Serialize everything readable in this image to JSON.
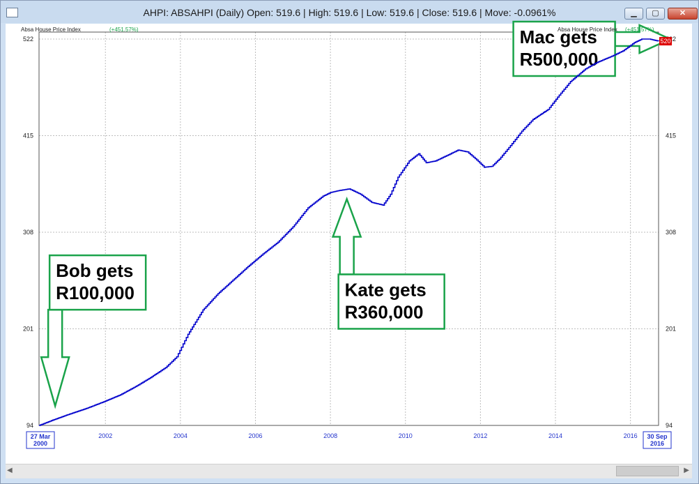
{
  "window": {
    "title": "AHPI: ABSAHPI (Daily) Open: 519.6 | High: 519.6 | Low: 519.6 | Close: 519.6 | Move: -0.0961%",
    "minimize_glyph": "▁",
    "maximize_glyph": "▢",
    "close_glyph": "✕"
  },
  "chart_data": {
    "type": "line",
    "series_label_left": "Absa House Price Index",
    "series_label_right": "Absa House Price Index",
    "change_label": "(+451.57%)",
    "line_color": "#0000cc",
    "annotation_color": "#1aa34a",
    "last_value_color": "#dd0000",
    "last_value_label": "520",
    "start_date_label": [
      "27 Mar",
      "2000"
    ],
    "end_date_label": [
      "30 Sep",
      "2016"
    ],
    "xticks": [
      "2002",
      "2004",
      "2006",
      "2008",
      "2010",
      "2012",
      "2014",
      "2016"
    ],
    "yticks": [
      "522",
      "415",
      "308",
      "201",
      "94"
    ],
    "ylim": [
      94,
      522
    ],
    "xlim": [
      2000.23,
      2016.75
    ],
    "grid": true,
    "x": [
      2000.23,
      2000.6,
      2001.0,
      2001.5,
      2002.0,
      2002.4,
      2002.8,
      2003.2,
      2003.6,
      2003.9,
      2004.2,
      2004.6,
      2005.0,
      2005.4,
      2005.8,
      2006.2,
      2006.6,
      2007.0,
      2007.4,
      2007.8,
      2008.0,
      2008.2,
      2008.5,
      2008.8,
      2009.1,
      2009.4,
      2009.6,
      2009.8,
      2010.1,
      2010.35,
      2010.55,
      2010.8,
      2011.1,
      2011.4,
      2011.65,
      2011.9,
      2012.1,
      2012.3,
      2012.5,
      2012.8,
      2013.1,
      2013.4,
      2013.8,
      2014.1,
      2014.4,
      2014.8,
      2015.1,
      2015.5,
      2015.8,
      2016.1,
      2016.3,
      2016.5,
      2016.75
    ],
    "y": [
      94,
      100,
      106,
      113,
      121,
      128,
      137,
      147,
      158,
      170,
      195,
      222,
      240,
      255,
      270,
      284,
      297,
      314,
      335,
      348,
      352,
      354,
      356,
      350,
      341,
      338,
      350,
      369,
      387,
      395,
      385,
      387,
      393,
      399,
      397,
      388,
      380,
      381,
      389,
      404,
      420,
      433,
      444,
      460,
      475,
      489,
      496,
      503,
      509,
      518,
      522,
      522,
      519.6
    ],
    "annotations": [
      {
        "text": [
          "Bob gets",
          "R100,000"
        ],
        "x": 2000.4,
        "y": 114,
        "direction": "down"
      },
      {
        "text": [
          "Kate gets",
          "R360,000"
        ],
        "x": 2008.4,
        "y": 354,
        "direction": "up"
      },
      {
        "text": [
          "Mac gets",
          "R500,000"
        ],
        "x": 2015.2,
        "y": 505,
        "direction": "right"
      }
    ]
  }
}
